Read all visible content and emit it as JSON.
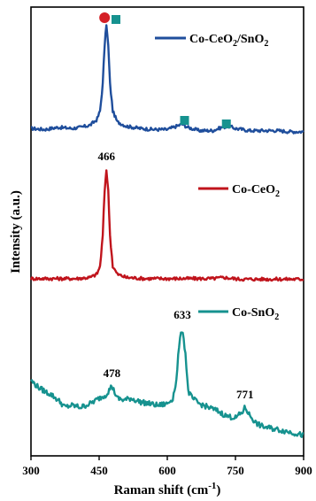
{
  "chart_data": {
    "type": "line",
    "title": "",
    "xlabel": "Raman shift (cm",
    "xlabel_sup": "-1",
    "xlabel_close": ")",
    "ylabel": "Intensity (a.u.)",
    "xlim": [
      300,
      900
    ],
    "xticks": [
      "300",
      "450",
      "600",
      "750",
      "900"
    ],
    "y_ticks_shown": false,
    "grid": false,
    "series": [
      {
        "name": "Co-CeO2/SnO2",
        "legend_parts": [
          "Co-CeO",
          "2",
          "/SnO",
          "2"
        ],
        "color": "#1f4e9c",
        "points": [
          [
            300,
            0.04
          ],
          [
            330,
            0.03
          ],
          [
            360,
            0.05
          ],
          [
            390,
            0.04
          ],
          [
            410,
            0.05
          ],
          [
            430,
            0.07
          ],
          [
            445,
            0.12
          ],
          [
            452,
            0.2
          ],
          [
            458,
            0.45
          ],
          [
            462,
            0.8
          ],
          [
            466,
            1.0
          ],
          [
            470,
            0.8
          ],
          [
            474,
            0.45
          ],
          [
            480,
            0.2
          ],
          [
            490,
            0.1
          ],
          [
            510,
            0.06
          ],
          [
            540,
            0.04
          ],
          [
            570,
            0.03
          ],
          [
            600,
            0.03
          ],
          [
            620,
            0.06
          ],
          [
            633,
            0.08
          ],
          [
            645,
            0.05
          ],
          [
            670,
            0.02
          ],
          [
            700,
            0.02
          ],
          [
            720,
            0.05
          ],
          [
            735,
            0.06
          ],
          [
            750,
            0.04
          ],
          [
            780,
            0.02
          ],
          [
            810,
            0.02
          ],
          [
            840,
            0.02
          ],
          [
            870,
            0.01
          ],
          [
            900,
            0.01
          ]
        ],
        "amplitude": 0.42
      },
      {
        "name": "Co-CeO2",
        "legend_parts": [
          "Co-CeO",
          "2"
        ],
        "color": "#c0141c",
        "points": [
          [
            300,
            0.01
          ],
          [
            350,
            0.01
          ],
          [
            400,
            0.01
          ],
          [
            430,
            0.02
          ],
          [
            445,
            0.05
          ],
          [
            452,
            0.12
          ],
          [
            458,
            0.4
          ],
          [
            462,
            0.8
          ],
          [
            466,
            1.0
          ],
          [
            470,
            0.8
          ],
          [
            474,
            0.4
          ],
          [
            480,
            0.12
          ],
          [
            490,
            0.05
          ],
          [
            510,
            0.02
          ],
          [
            550,
            0.01
          ],
          [
            600,
            0.01
          ],
          [
            650,
            0.01
          ],
          [
            700,
            0.01
          ],
          [
            725,
            0.02
          ],
          [
            735,
            0.015
          ],
          [
            760,
            0.005
          ],
          [
            800,
            0.005
          ],
          [
            850,
            0.005
          ],
          [
            900,
            0.005
          ]
        ],
        "amplitude": 0.4
      },
      {
        "name": "Co-SnO2",
        "legend_parts": [
          "Co-SnO",
          "2"
        ],
        "color": "#16928f",
        "points": [
          [
            300,
            0.4
          ],
          [
            315,
            0.33
          ],
          [
            330,
            0.28
          ],
          [
            345,
            0.24
          ],
          [
            360,
            0.18
          ],
          [
            375,
            0.1
          ],
          [
            390,
            0.12
          ],
          [
            410,
            0.1
          ],
          [
            430,
            0.14
          ],
          [
            450,
            0.2
          ],
          [
            465,
            0.24
          ],
          [
            478,
            0.34
          ],
          [
            490,
            0.2
          ],
          [
            505,
            0.18
          ],
          [
            520,
            0.2
          ],
          [
            540,
            0.16
          ],
          [
            560,
            0.14
          ],
          [
            580,
            0.12
          ],
          [
            600,
            0.14
          ],
          [
            612,
            0.2
          ],
          [
            620,
            0.4
          ],
          [
            626,
            0.8
          ],
          [
            633,
            1.0
          ],
          [
            640,
            0.7
          ],
          [
            646,
            0.28
          ],
          [
            655,
            0.2
          ],
          [
            670,
            0.14
          ],
          [
            690,
            0.1
          ],
          [
            710,
            0.06
          ],
          [
            730,
            0.0
          ],
          [
            750,
            -0.02
          ],
          [
            765,
            0.04
          ],
          [
            771,
            0.1
          ],
          [
            780,
            0.02
          ],
          [
            795,
            -0.08
          ],
          [
            810,
            -0.12
          ],
          [
            830,
            -0.14
          ],
          [
            850,
            -0.16
          ],
          [
            870,
            -0.18
          ],
          [
            885,
            -0.2
          ],
          [
            900,
            -0.22
          ]
        ],
        "amplitude": 0.3
      }
    ],
    "annotations": [
      {
        "text": "466",
        "x": 466,
        "series": 1
      },
      {
        "text": "633",
        "x": 633,
        "series": 2
      },
      {
        "text": "478",
        "x": 478,
        "series": 2
      },
      {
        "text": "771",
        "x": 771,
        "series": 2
      }
    ],
    "markers": [
      {
        "shape": "circle",
        "color": "#d42026",
        "x": 462
      },
      {
        "shape": "square",
        "color": "#16928f",
        "x": 487
      },
      {
        "shape": "square",
        "color": "#16928f",
        "x": 638
      },
      {
        "shape": "square",
        "color": "#16928f",
        "x": 730
      }
    ]
  }
}
